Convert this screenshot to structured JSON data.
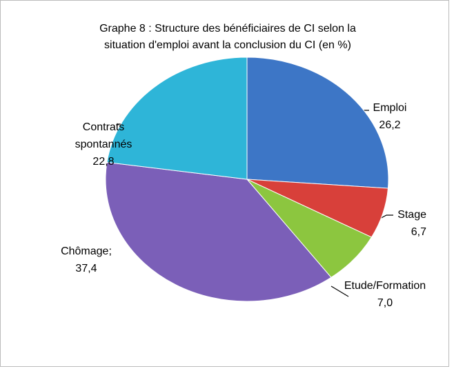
{
  "chart_data": {
    "type": "pie",
    "title": "Graphe 8 : Structure des bénéficiaires de CI selon la situation d'emploi avant la conclusion du CI (en %)",
    "categories": [
      "Emploi",
      "Stage",
      "Etude/Formation",
      "Chômage;",
      "Contrats spontannés"
    ],
    "values": [
      26.2,
      6.7,
      7.0,
      37.4,
      22.8
    ],
    "value_labels": [
      "26,2",
      "6,7",
      "7,0",
      "37,4",
      "22,8"
    ],
    "colors": [
      "#3d76c6",
      "#d8403a",
      "#8cc63f",
      "#7b5fb8",
      "#2eb5d8"
    ]
  }
}
